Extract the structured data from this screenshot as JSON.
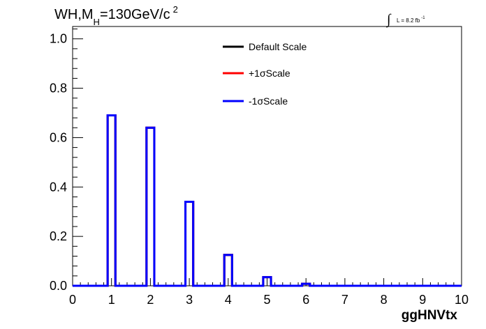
{
  "chart_data": {
    "type": "histogram",
    "title": {
      "main": "WH,M",
      "sub_h": "H",
      "rest": "=130GeV/c",
      "sup": "2"
    },
    "lumi": {
      "integral_sign": "∫",
      "text": "L = 8.2 fb",
      "sup": "-1"
    },
    "xlabel": "ggHNVtx",
    "ylabel": "",
    "xlim": [
      0,
      10
    ],
    "ylim": [
      0,
      1.05
    ],
    "x_ticks": [
      "0",
      "1",
      "2",
      "3",
      "4",
      "5",
      "6",
      "7",
      "8",
      "9",
      "10"
    ],
    "y_ticks": [
      "0.0",
      "0.2",
      "0.4",
      "0.6",
      "0.8",
      "1.0"
    ],
    "bin_width": 0.2,
    "bin_edges_start": [
      0.9,
      1.9,
      2.9,
      3.9,
      4.9,
      5.9
    ],
    "legend": [
      {
        "label": "Default Scale",
        "color": "#000000"
      },
      {
        "label": "+1σScale",
        "color": "#ff0000"
      },
      {
        "label": "-1σScale",
        "color": "#0000ff"
      }
    ],
    "legend_position": "top-center",
    "series": [
      {
        "name": "Default Scale",
        "color": "#000000",
        "values": [
          0.69,
          0.64,
          0.34,
          0.125,
          0.035,
          0.008
        ]
      },
      {
        "name": "+1σScale",
        "color": "#ff0000",
        "values": [
          0.69,
          0.64,
          0.34,
          0.125,
          0.035,
          0.008
        ]
      },
      {
        "name": "-1σScale",
        "color": "#0000ff",
        "values": [
          0.69,
          0.64,
          0.34,
          0.125,
          0.035,
          0.008
        ]
      }
    ]
  }
}
